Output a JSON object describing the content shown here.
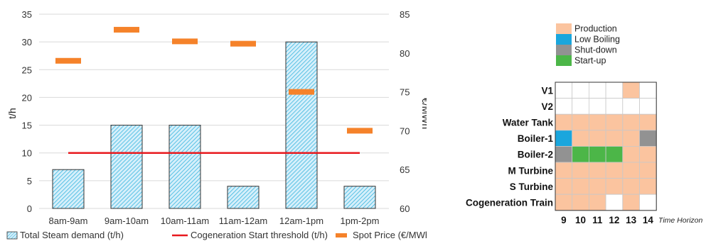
{
  "chart_data": {
    "type": "bar",
    "categories": [
      "8am-9am",
      "9am-10am",
      "10am-11am",
      "11am-12am",
      "12am-1pm",
      "1pm-2pm"
    ],
    "series": [
      {
        "name": "Total Steam demand (t/h)",
        "kind": "bar",
        "axis": "left",
        "values": [
          7,
          15,
          15,
          4,
          30,
          4
        ],
        "color": "#38b6e0"
      },
      {
        "name": "Cogeneration Start threshold (t/h)",
        "kind": "line",
        "axis": "left",
        "values": [
          10,
          10,
          10,
          10,
          10,
          10
        ],
        "color": "#e8191e"
      },
      {
        "name": "Spot Price (€/MWh)",
        "kind": "marker",
        "axis": "right",
        "values": [
          79,
          83,
          81.5,
          81.2,
          75,
          70
        ],
        "color": "#f5822a"
      }
    ],
    "ylabel": "t/h",
    "ylabel_right": "€/MWh",
    "ylim": [
      0,
      35
    ],
    "ylim_right": [
      60,
      85
    ],
    "yticks": [
      "0",
      "5",
      "10",
      "15",
      "20",
      "25",
      "30",
      "35"
    ],
    "yticks_right": [
      "60",
      "65",
      "70",
      "75",
      "80",
      "85"
    ],
    "grid": true,
    "legend_position": "bottom"
  },
  "schedule": {
    "legend": [
      {
        "label": "Production",
        "color": "#fbc49f"
      },
      {
        "label": "Low Boiling",
        "color": "#1aa6dd"
      },
      {
        "label": "Shut-down",
        "color": "#929292"
      },
      {
        "label": "Start-up",
        "color": "#4cb648"
      }
    ],
    "rows": [
      "V1",
      "V2",
      "Water Tank",
      "Boiler-1",
      "Boiler-2",
      "M Turbine",
      "S Turbine",
      "Cogeneration Train"
    ],
    "columns": [
      "9",
      "10",
      "11",
      "12",
      "13",
      "14"
    ],
    "axis_label": "Time Horizon",
    "states": [
      [
        "empty",
        "empty",
        "empty",
        "empty",
        "production",
        "empty"
      ],
      [
        "empty",
        "empty",
        "empty",
        "empty",
        "empty",
        "empty"
      ],
      [
        "production",
        "production",
        "production",
        "production",
        "production",
        "production"
      ],
      [
        "low_boiling",
        "production",
        "production",
        "production",
        "production",
        "shut_down"
      ],
      [
        "shut_down",
        "start_up",
        "start_up",
        "start_up",
        "production",
        "production"
      ],
      [
        "production",
        "production",
        "production",
        "production",
        "production",
        "production"
      ],
      [
        "production",
        "production",
        "production",
        "production",
        "production",
        "production"
      ],
      [
        "production",
        "production",
        "production",
        "empty",
        "production",
        "empty"
      ]
    ],
    "state_colors": {
      "production": "#fbc49f",
      "low_boiling": "#1aa6dd",
      "shut_down": "#929292",
      "start_up": "#4cb648",
      "empty": "#ffffff"
    }
  }
}
